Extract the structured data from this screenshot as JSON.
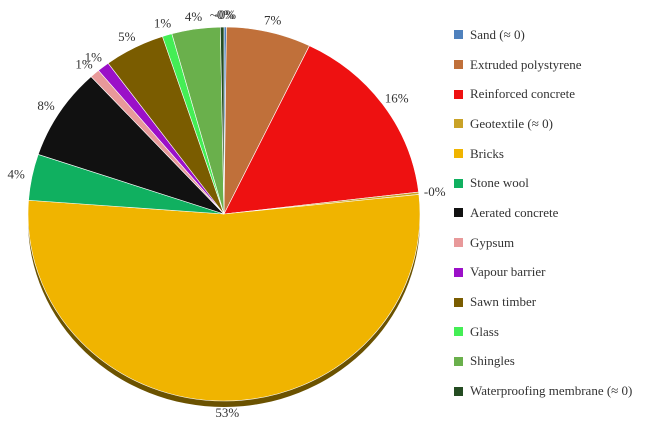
{
  "chart_data": {
    "type": "pie",
    "title": "",
    "legend_position": "right",
    "start_angle_deg": 0,
    "direction": "clockwise",
    "slices": [
      {
        "name": "Sand (≈ 0)",
        "value": 0.2,
        "label": "-0%",
        "color": "#4f81bd"
      },
      {
        "name": "Extruded polystyrene",
        "value": 7,
        "label": "7%",
        "color": "#c0703a"
      },
      {
        "name": "Reinforced concrete",
        "value": 16,
        "label": "16%",
        "color": "#ee1111"
      },
      {
        "name": "Geotextile (≈ 0)",
        "value": 0.2,
        "label": "-0%",
        "color": "#c9a227"
      },
      {
        "name": "Bricks",
        "value": 53,
        "label": "53%",
        "color": "#f0b400"
      },
      {
        "name": "Stone wool",
        "value": 4,
        "label": "4%",
        "color": "#10b060"
      },
      {
        "name": "Aerated concrete",
        "value": 8,
        "label": "8%",
        "color": "#111111"
      },
      {
        "name": "Gypsum",
        "value": 0.8,
        "label": "1%",
        "color": "#e8999a"
      },
      {
        "name": "Vapour barrier",
        "value": 1,
        "label": "1%",
        "color": "#9b10c8"
      },
      {
        "name": "Sawn timber",
        "value": 5,
        "label": "5%",
        "color": "#7a5c00"
      },
      {
        "name": "Glass",
        "value": 0.8,
        "label": "1%",
        "color": "#44ee55"
      },
      {
        "name": "Shingles",
        "value": 4,
        "label": "4%",
        "color": "#6ab04c"
      },
      {
        "name": "Waterproofing membrane (≈ 0)",
        "value": 0.3,
        "label": "~0%",
        "color": "#244c22"
      }
    ]
  }
}
